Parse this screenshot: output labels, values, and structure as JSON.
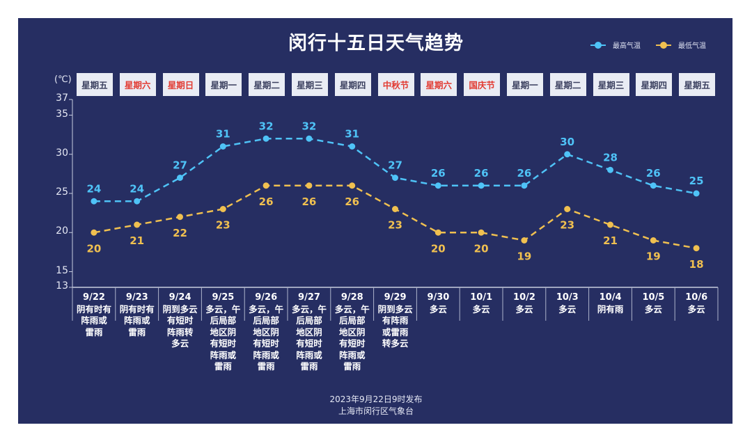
{
  "title": "闵行十五日天气趋势",
  "legend": [
    {
      "label": "最高气温",
      "color": "#4fc3f7"
    },
    {
      "label": "最低气温",
      "color": "#f0c050"
    }
  ],
  "unit_label": "(℃)",
  "footer": {
    "line1": "2023年9月22日9时发布",
    "line2": "上海市闵行区气象台"
  },
  "days": [
    {
      "weekday": "星期五",
      "holiday": false,
      "date": "9/22",
      "desc": "阴有时有\n阵雨或\n雷雨"
    },
    {
      "weekday": "星期六",
      "holiday": true,
      "date": "9/23",
      "desc": "阴有时有\n阵雨或\n雷雨"
    },
    {
      "weekday": "星期日",
      "holiday": true,
      "date": "9/24",
      "desc": "阴到多云\n有短时\n阵雨转\n多云"
    },
    {
      "weekday": "星期一",
      "holiday": false,
      "date": "9/25",
      "desc": "多云，午\n后局部\n地区阴\n有短时\n阵雨或\n雷雨"
    },
    {
      "weekday": "星期二",
      "holiday": false,
      "date": "9/26",
      "desc": "多云，午\n后局部\n地区阴\n有短时\n阵雨或\n雷雨"
    },
    {
      "weekday": "星期三",
      "holiday": false,
      "date": "9/27",
      "desc": "多云，午\n后局部\n地区阴\n有短时\n阵雨或\n雷雨"
    },
    {
      "weekday": "星期四",
      "holiday": false,
      "date": "9/28",
      "desc": "多云，午\n后局部\n地区阴\n有短时\n阵雨或\n雷雨"
    },
    {
      "weekday": "中秋节",
      "holiday": true,
      "date": "9/29",
      "desc": "阴到多云\n有阵雨\n或雷雨\n转多云"
    },
    {
      "weekday": "星期六",
      "holiday": true,
      "date": "9/30",
      "desc": "多云"
    },
    {
      "weekday": "国庆节",
      "holiday": true,
      "date": "10/1",
      "desc": "多云"
    },
    {
      "weekday": "星期一",
      "holiday": false,
      "date": "10/2",
      "desc": "多云"
    },
    {
      "weekday": "星期二",
      "holiday": false,
      "date": "10/3",
      "desc": "多云"
    },
    {
      "weekday": "星期三",
      "holiday": false,
      "date": "10/4",
      "desc": "阴有雨"
    },
    {
      "weekday": "星期四",
      "holiday": false,
      "date": "10/5",
      "desc": "多云"
    },
    {
      "weekday": "星期五",
      "holiday": false,
      "date": "10/6",
      "desc": "多云"
    }
  ],
  "chart_data": {
    "type": "line",
    "title": "闵行十五日天气趋势",
    "xlabel": "",
    "ylabel": "(℃)",
    "categories": [
      "9/22",
      "9/23",
      "9/24",
      "9/25",
      "9/26",
      "9/27",
      "9/28",
      "9/29",
      "9/30",
      "10/1",
      "10/2",
      "10/3",
      "10/4",
      "10/5",
      "10/6"
    ],
    "series": [
      {
        "name": "最高气温",
        "color": "#4fc3f7",
        "style": "dashed",
        "values": [
          24,
          24,
          27,
          31,
          32,
          32,
          31,
          27,
          26,
          26,
          26,
          30,
          28,
          26,
          25
        ]
      },
      {
        "name": "最低气温",
        "color": "#f0c050",
        "style": "dashed",
        "values": [
          20,
          21,
          22,
          23,
          26,
          26,
          26,
          23,
          20,
          20,
          19,
          23,
          21,
          19,
          18
        ]
      }
    ],
    "yticks": [
      13,
      15,
      20,
      25,
      30,
      35,
      37
    ],
    "ylim": [
      13,
      37
    ],
    "grid": false,
    "legend_position": "top-right"
  }
}
